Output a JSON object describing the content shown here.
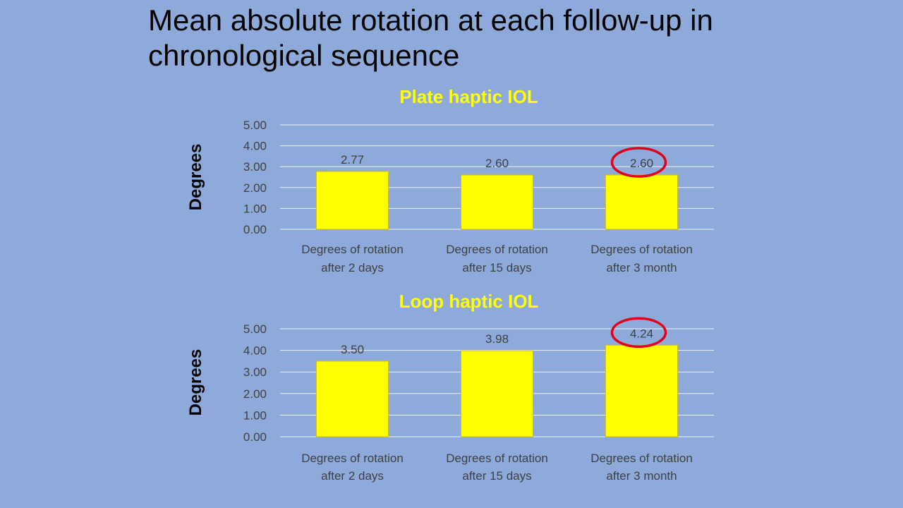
{
  "slide": {
    "title_line1": "Mean absolute rotation at each follow-up in",
    "title_line2": "chronological sequence"
  },
  "colors": {
    "background": "#8eaadb",
    "bar": "#ffff00",
    "chart_title": "#ffff00",
    "highlight_circle": "#e3001b",
    "gridline": "#ffffff"
  },
  "chart_data": [
    {
      "type": "bar",
      "title": "Plate haptic IOL",
      "ylabel": "Degrees",
      "xlabel": "",
      "categories": [
        [
          "Degrees of rotation",
          "after 2 days"
        ],
        [
          "Degrees of rotation",
          "after 15 days"
        ],
        [
          "Degrees of rotation",
          "after 3 month"
        ]
      ],
      "values": [
        2.77,
        2.6,
        2.6
      ],
      "value_labels": [
        "2.77",
        "2.60",
        "2.60"
      ],
      "ylim": [
        0,
        5
      ],
      "yticks": [
        "0.00",
        "1.00",
        "2.00",
        "3.00",
        "4.00",
        "5.00"
      ],
      "grid": true,
      "legend": "none",
      "highlighted_label_index": 2
    },
    {
      "type": "bar",
      "title": "Loop haptic IOL",
      "ylabel": "Degrees",
      "xlabel": "",
      "categories": [
        [
          "Degrees of rotation",
          "after 2 days"
        ],
        [
          "Degrees of rotation",
          "after 15 days"
        ],
        [
          "Degrees of rotation",
          "after 3 month"
        ]
      ],
      "values": [
        3.5,
        3.98,
        4.24
      ],
      "value_labels": [
        "3.50",
        "3.98",
        "4.24"
      ],
      "ylim": [
        0,
        5
      ],
      "yticks": [
        "0.00",
        "1.00",
        "2.00",
        "3.00",
        "4.00",
        "5.00"
      ],
      "grid": true,
      "legend": "none",
      "highlighted_label_index": 2
    }
  ]
}
